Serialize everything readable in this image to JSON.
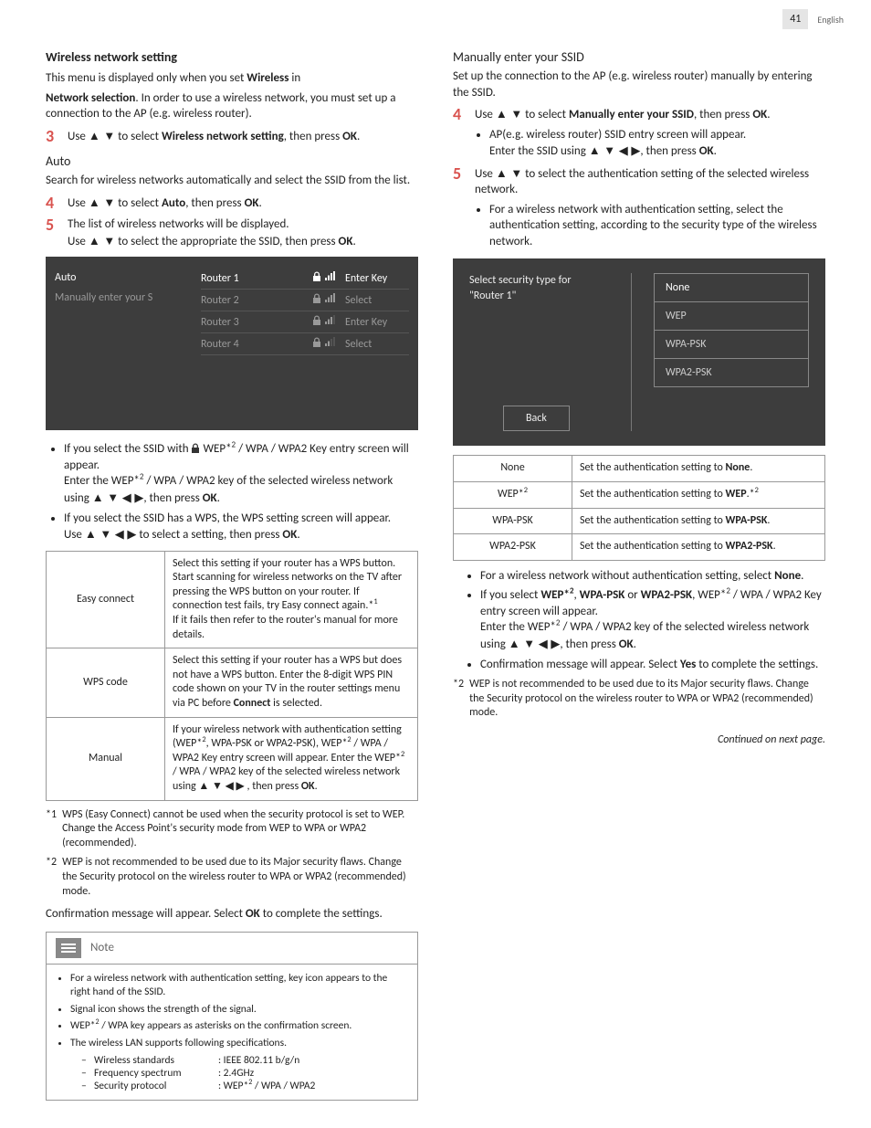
{
  "page": {
    "number": "41",
    "language": "English"
  },
  "left": {
    "title": "Wireless network setting",
    "intro1_a": "This menu is displayed only when you set ",
    "intro1_b": "Wireless",
    "intro1_c": " in",
    "intro2_a": "Network selection",
    "intro2_b": ". In order to use a wireless network, you must set up a connection to the AP (e.g. wireless router).",
    "step3": {
      "num": "3",
      "a": "Use ",
      "arrows": "▲ ▼",
      "b": " to select ",
      "bold": "Wireless network setting",
      "c": ", then press ",
      "ok": "OK",
      "d": "."
    },
    "auto_head": "Auto",
    "auto_intro": "Search for wireless networks automatically and select the SSID from the list.",
    "step4": {
      "num": "4",
      "a": "Use ",
      "arrows": "▲ ▼",
      "b": " to select ",
      "bold": "Auto",
      "c": ", then press ",
      "ok": "OK",
      "d": "."
    },
    "step5": {
      "num": "5",
      "a": "The list of wireless networks will be displayed.",
      "line2_a": "Use ",
      "arrows": "▲ ▼",
      "line2_b": " to select the appropriate the SSID, then press ",
      "ok": "OK",
      "line2_c": "."
    },
    "router_ui": {
      "left_items": [
        {
          "label": "Auto",
          "selected": true
        },
        {
          "label": "Manually enter your S",
          "selected": false
        }
      ],
      "rows": [
        {
          "name": "Router 1",
          "action": "Enter Key",
          "selected": true,
          "signal": 4
        },
        {
          "name": "Router 2",
          "action": "Select",
          "selected": false,
          "signal": 4
        },
        {
          "name": "Router 3",
          "action": "Enter Key",
          "selected": false,
          "signal": 3
        },
        {
          "name": "Router 4",
          "action": "Select",
          "selected": false,
          "signal": 2
        }
      ]
    },
    "post_list": [
      {
        "a": "If you select the SSID with ",
        "b": " WEP*",
        "sup": "2",
        "c": " / WPA / WPA2 Key entry screen will appear.",
        "line2": "Enter the WEP*",
        "sup2": "2",
        "line2b": " / WPA / WPA2 key of the selected wireless network using ",
        "arrows": "▲ ▼ ◀ ▶",
        "line2c": ", then press ",
        "ok": "OK",
        "end": "."
      },
      {
        "a": "If you select the SSID has a WPS, the WPS setting screen will appear.",
        "line2a": "Use ",
        "arrows": "▲ ▼ ◀ ▶",
        "line2b": " to select a setting, then press ",
        "ok": "OK",
        "end": "."
      }
    ],
    "wps_table": [
      {
        "k": "Easy connect",
        "v": "Select this setting if your router has a WPS button. Start scanning for wireless networks on the TV after pressing the WPS button on your router. If connection test fails, try Easy connect again.*1\nIf it fails then refer to the router's manual for more details."
      },
      {
        "k": "WPS code",
        "v": "Select this setting if your router has a WPS but does not have a WPS button. Enter the 8-digit WPS PIN code shown on your TV in the router settings menu via PC before Connect is selected."
      },
      {
        "k": "Manual",
        "v": "If your wireless network with authentication setting (WEP*2, WPA-PSK or WPA2-PSK), WEP*2 / WPA / WPA2 Key entry screen will appear. Enter the WEP*2 / WPA / WPA2 key of the selected wireless network using ▲ ▼ ◀ ▶ , then press OK."
      }
    ],
    "fn1": {
      "mark": "*1",
      "text": "WPS (Easy Connect) cannot be used when the security protocol is set to WEP. Change the Access Point's security mode from WEP to WPA or WPA2 (recommended)."
    },
    "fn2": {
      "mark": "*2",
      "text": "WEP is not recommended to be used due to its Major security flaws. Change the Security protocol on the wireless router to WPA or WPA2 (recommended) mode."
    },
    "confirm_a": "Confirmation message will appear. Select ",
    "confirm_ok": "OK",
    "confirm_b": " to complete the settings.",
    "note_title": "Note",
    "notes": [
      "For a wireless network with authentication setting, key icon appears to the right hand of the SSID.",
      "Signal icon shows the strength of the signal.",
      "WEP*2 / WPA key appears as asterisks on the confirmation screen.",
      "The wireless LAN supports following specifications."
    ],
    "specs": [
      {
        "k": "Wireless standards",
        "v": ": IEEE 802.11 b/g/n"
      },
      {
        "k": "Frequency spectrum",
        "v": ": 2.4GHz"
      },
      {
        "k": "Security protocol",
        "v": ": WEP*2 / WPA / WPA2"
      }
    ]
  },
  "right": {
    "title": "Manually enter your SSID",
    "intro": "Set up the connection to the AP (e.g. wireless router) manually by entering the SSID.",
    "step4": {
      "num": "4",
      "a": "Use ",
      "arrows": "▲ ▼",
      "b": " to select ",
      "bold": "Manually enter your SSID",
      "c": ", then press ",
      "ok": "OK",
      "d": "."
    },
    "step4_sub": [
      {
        "a": "AP(e.g. wireless router) SSID entry screen will appear.",
        "b": "Enter the SSID using ",
        "arrows": "▲ ▼ ◀ ▶",
        "c": ", then press ",
        "ok": "OK",
        "d": "."
      }
    ],
    "step5": {
      "num": "5",
      "a": "Use ",
      "arrows": "▲ ▼",
      "b": " to select the authentication setting of the selected wireless network."
    },
    "step5_sub": [
      "For a wireless network with authentication setting, select the authentication setting, according to the security type of the wireless network."
    ],
    "sec_ui": {
      "prompt_a": "Select security type for",
      "prompt_b": "\"Router 1\"",
      "options": [
        "None",
        "WEP",
        "WPA-PSK",
        "WPA2-PSK"
      ],
      "back": "Back"
    },
    "auth_table": [
      {
        "k": "None",
        "v_a": "Set the authentication setting to ",
        "v_b": "None",
        "v_c": "."
      },
      {
        "k": "WEP*",
        "ksup": "2",
        "v_a": "Set the authentication setting to ",
        "v_b": "WEP",
        "v_c": ".*",
        "vsup": "2"
      },
      {
        "k": "WPA-PSK",
        "v_a": "Set the authentication setting to ",
        "v_b": "WPA-PSK",
        "v_c": "."
      },
      {
        "k": "WPA2-PSK",
        "v_a": "Set the authentication setting to ",
        "v_b": "WPA2-PSK",
        "v_c": "."
      }
    ],
    "post": [
      {
        "a": "For a wireless network without authentication setting, select ",
        "b": "None",
        "c": "."
      },
      {
        "a": "If you select ",
        "b": "WEP*",
        "sup": "2",
        "c": ", ",
        "d": "WPA-PSK",
        "e": " or ",
        "f": "WPA2-PSK",
        "g": ", WEP*",
        "sup2": "2",
        "h": " / WPA / WPA2 Key entry screen will appear.",
        "line2a": "Enter the WEP*",
        "sup3": "2",
        "line2b": " / WPA / WPA2 key of the selected wireless network using ",
        "arrows": "▲ ▼ ◀ ▶",
        "line2c": ", then press ",
        "ok": "OK",
        "end": "."
      },
      {
        "a": "Confirmation message will appear. Select ",
        "b": "Yes",
        "c": " to complete the settings."
      }
    ],
    "fn2": {
      "mark": "*2",
      "text": "WEP is not recommended to be used due to its Major security flaws. Change the Security protocol on the wireless router to WPA or WPA2 (recommended) mode."
    },
    "continued": "Continued on next page."
  },
  "colors": {
    "accent": "#d9534f",
    "ui_bg": "#3d3d3d"
  }
}
